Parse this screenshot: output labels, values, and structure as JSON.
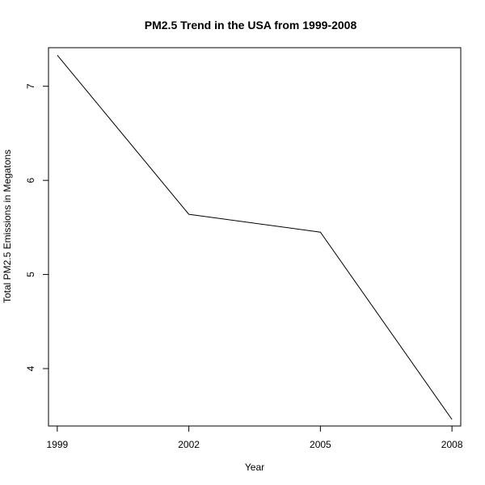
{
  "chart_data": {
    "type": "line",
    "title": "PM2.5 Trend in the USA from 1999-2008",
    "xlabel": "Year",
    "ylabel": "Total PM2.5 Emissions in Megatons",
    "x": [
      1999,
      2002,
      2005,
      2008
    ],
    "series": [
      {
        "values": [
          7.33,
          5.64,
          5.45,
          3.46
        ]
      }
    ],
    "xlim": [
      1998.8,
      2008.2
    ],
    "ylim": [
      3.39,
      7.41
    ],
    "xticks": [
      1999,
      2002,
      2005,
      2008
    ],
    "yticks": [
      4,
      5,
      6,
      7
    ],
    "line_color": "#000000",
    "grid": false,
    "legend": "none"
  }
}
